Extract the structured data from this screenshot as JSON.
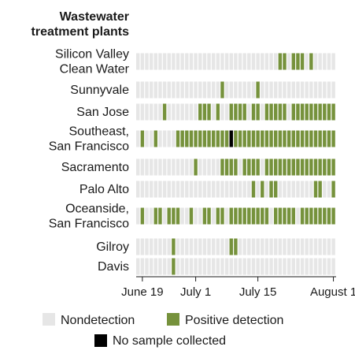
{
  "chart_data": {
    "type": "heatmap",
    "title": "Wastewater treatment plants",
    "date_range": [
      "2022-06-18",
      "2022-08-01"
    ],
    "x_ticks": [
      {
        "label": "June 19",
        "date": "2022-06-19"
      },
      {
        "label": "July 1",
        "date": "2022-07-01"
      },
      {
        "label": "July 15",
        "date": "2022-07-15"
      },
      {
        "label": "August 1",
        "date": "2022-08-01"
      }
    ],
    "categories": {
      "nondetection": {
        "label": "Nondetection",
        "color": "#e6e6e6"
      },
      "positive": {
        "label": "Positive detection",
        "color": "#76923c"
      },
      "missing": {
        "label": "No sample collected",
        "color": "#000000"
      }
    },
    "plants": [
      {
        "label": [
          "Silicon Valley",
          "Clean Water"
        ],
        "positive": [
          "2022-07-20",
          "2022-07-21",
          "2022-07-23",
          "2022-07-24",
          "2022-07-25",
          "2022-07-27"
        ],
        "missing": []
      },
      {
        "label": [
          "Sunnyvale"
        ],
        "positive": [
          "2022-07-07",
          "2022-07-15"
        ],
        "missing": []
      },
      {
        "label": [
          "San Jose"
        ],
        "positive": [
          "2022-06-24",
          "2022-07-02",
          "2022-07-03",
          "2022-07-04",
          "2022-07-06",
          "2022-07-09",
          "2022-07-10",
          "2022-07-11",
          "2022-07-12",
          "2022-07-14",
          "2022-07-15",
          "2022-07-17",
          "2022-07-18",
          "2022-07-19",
          "2022-07-20",
          "2022-07-21",
          "2022-07-23",
          "2022-07-24",
          "2022-07-25",
          "2022-07-26",
          "2022-07-27",
          "2022-07-28",
          "2022-07-29",
          "2022-07-30",
          "2022-07-31",
          "2022-08-01"
        ],
        "missing": []
      },
      {
        "label": [
          "Southeast,",
          "San Francisco"
        ],
        "positive": [
          "2022-06-19",
          "2022-06-22",
          "2022-06-27",
          "2022-06-28",
          "2022-06-29",
          "2022-06-30",
          "2022-07-01",
          "2022-07-02",
          "2022-07-03",
          "2022-07-04",
          "2022-07-05",
          "2022-07-06",
          "2022-07-07",
          "2022-07-08",
          "2022-07-10",
          "2022-07-11",
          "2022-07-12",
          "2022-07-13",
          "2022-07-14",
          "2022-07-15",
          "2022-07-16",
          "2022-07-17",
          "2022-07-18",
          "2022-07-19",
          "2022-07-20",
          "2022-07-21",
          "2022-07-22",
          "2022-07-23",
          "2022-07-24",
          "2022-07-25",
          "2022-07-26",
          "2022-07-27",
          "2022-07-28",
          "2022-07-29",
          "2022-07-30",
          "2022-07-31",
          "2022-08-01"
        ],
        "missing": [
          "2022-07-09"
        ]
      },
      {
        "label": [
          "Sacramento"
        ],
        "positive": [
          "2022-07-01",
          "2022-07-07",
          "2022-07-08",
          "2022-07-09",
          "2022-07-10",
          "2022-07-12",
          "2022-07-13",
          "2022-07-14",
          "2022-07-15",
          "2022-07-17",
          "2022-07-18",
          "2022-07-19",
          "2022-07-20",
          "2022-07-21",
          "2022-07-22",
          "2022-07-23",
          "2022-07-24",
          "2022-07-25",
          "2022-07-26",
          "2022-07-27",
          "2022-07-28",
          "2022-07-29",
          "2022-07-30",
          "2022-07-31",
          "2022-08-01"
        ],
        "missing": []
      },
      {
        "label": [
          "Palo Alto"
        ],
        "positive": [
          "2022-07-14",
          "2022-07-16",
          "2022-07-18",
          "2022-07-19",
          "2022-07-28",
          "2022-07-29",
          "2022-08-01"
        ],
        "missing": []
      },
      {
        "label": [
          "Oceanside,",
          "San Francisco"
        ],
        "positive": [
          "2022-06-19",
          "2022-06-22",
          "2022-06-23",
          "2022-06-25",
          "2022-06-26",
          "2022-06-27",
          "2022-06-30",
          "2022-07-03",
          "2022-07-04",
          "2022-07-06",
          "2022-07-07",
          "2022-07-09",
          "2022-07-10",
          "2022-07-11",
          "2022-07-12",
          "2022-07-13",
          "2022-07-14",
          "2022-07-15",
          "2022-07-16",
          "2022-07-17",
          "2022-07-19",
          "2022-07-20",
          "2022-07-21",
          "2022-07-22",
          "2022-07-23",
          "2022-07-25",
          "2022-07-26",
          "2022-07-27",
          "2022-07-28",
          "2022-07-29",
          "2022-07-30",
          "2022-07-31",
          "2022-08-01"
        ],
        "missing": []
      },
      {
        "label": [
          "Gilroy"
        ],
        "positive": [
          "2022-06-26",
          "2022-07-09",
          "2022-07-10"
        ],
        "missing": []
      },
      {
        "label": [
          "Davis"
        ],
        "positive": [
          "2022-06-26"
        ],
        "missing": []
      }
    ]
  }
}
